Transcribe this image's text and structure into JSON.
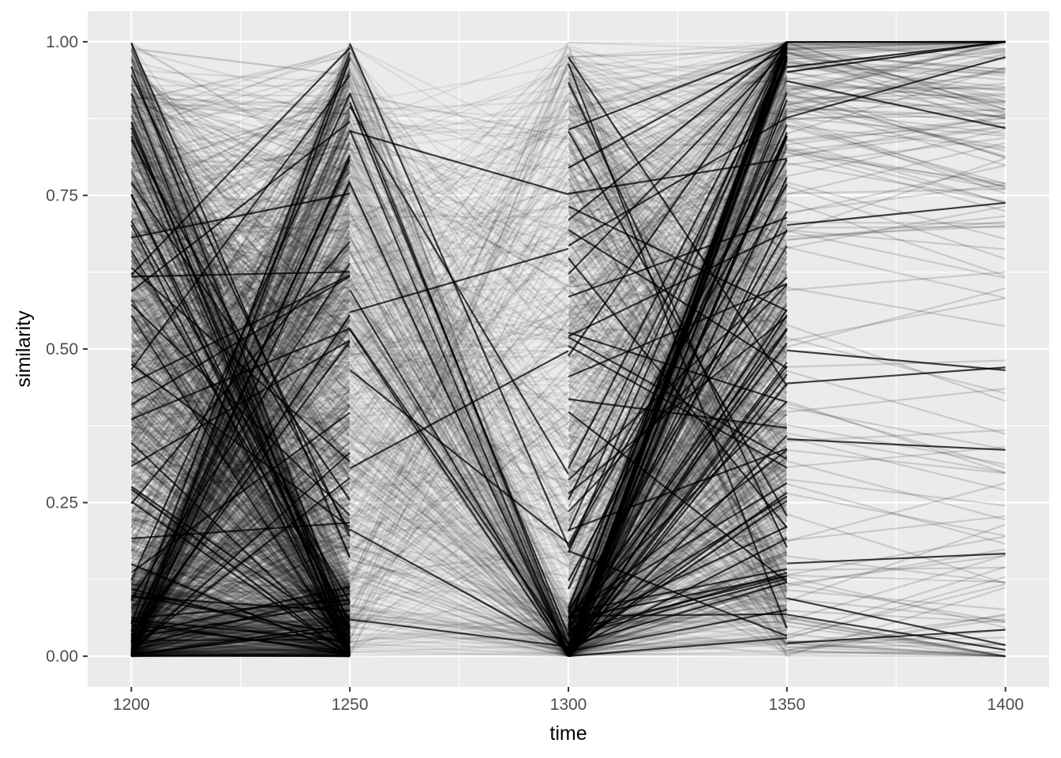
{
  "chart_data": {
    "type": "line",
    "title": "",
    "xlabel": "time",
    "ylabel": "similarity",
    "xlim": [
      1190,
      1410
    ],
    "ylim": [
      -0.05,
      1.05
    ],
    "x_ticks": [
      1200,
      1250,
      1300,
      1350,
      1400
    ],
    "x_tick_labels": [
      "1200",
      "1250",
      "1300",
      "1350",
      "1400"
    ],
    "y_ticks": [
      0,
      0.25,
      0.5,
      0.75,
      1
    ],
    "y_tick_labels": [
      "0.00",
      "0.25",
      "0.50",
      "0.75",
      "1.00"
    ],
    "grid": true,
    "legend": "none",
    "line_color": "#000000",
    "panel_background": "#ebebeb",
    "grid_color": "#ffffff",
    "segments": [
      {
        "from": 1200,
        "to": 1250,
        "density": "very high",
        "alpha": 0.35
      },
      {
        "from": 1250,
        "to": 1300,
        "density": "moderate",
        "alpha": 0.12
      },
      {
        "from": 1300,
        "to": 1350,
        "density": "high",
        "alpha": 0.28
      },
      {
        "from": 1350,
        "to": 1400,
        "density": "low",
        "alpha": 0.12
      }
    ]
  }
}
